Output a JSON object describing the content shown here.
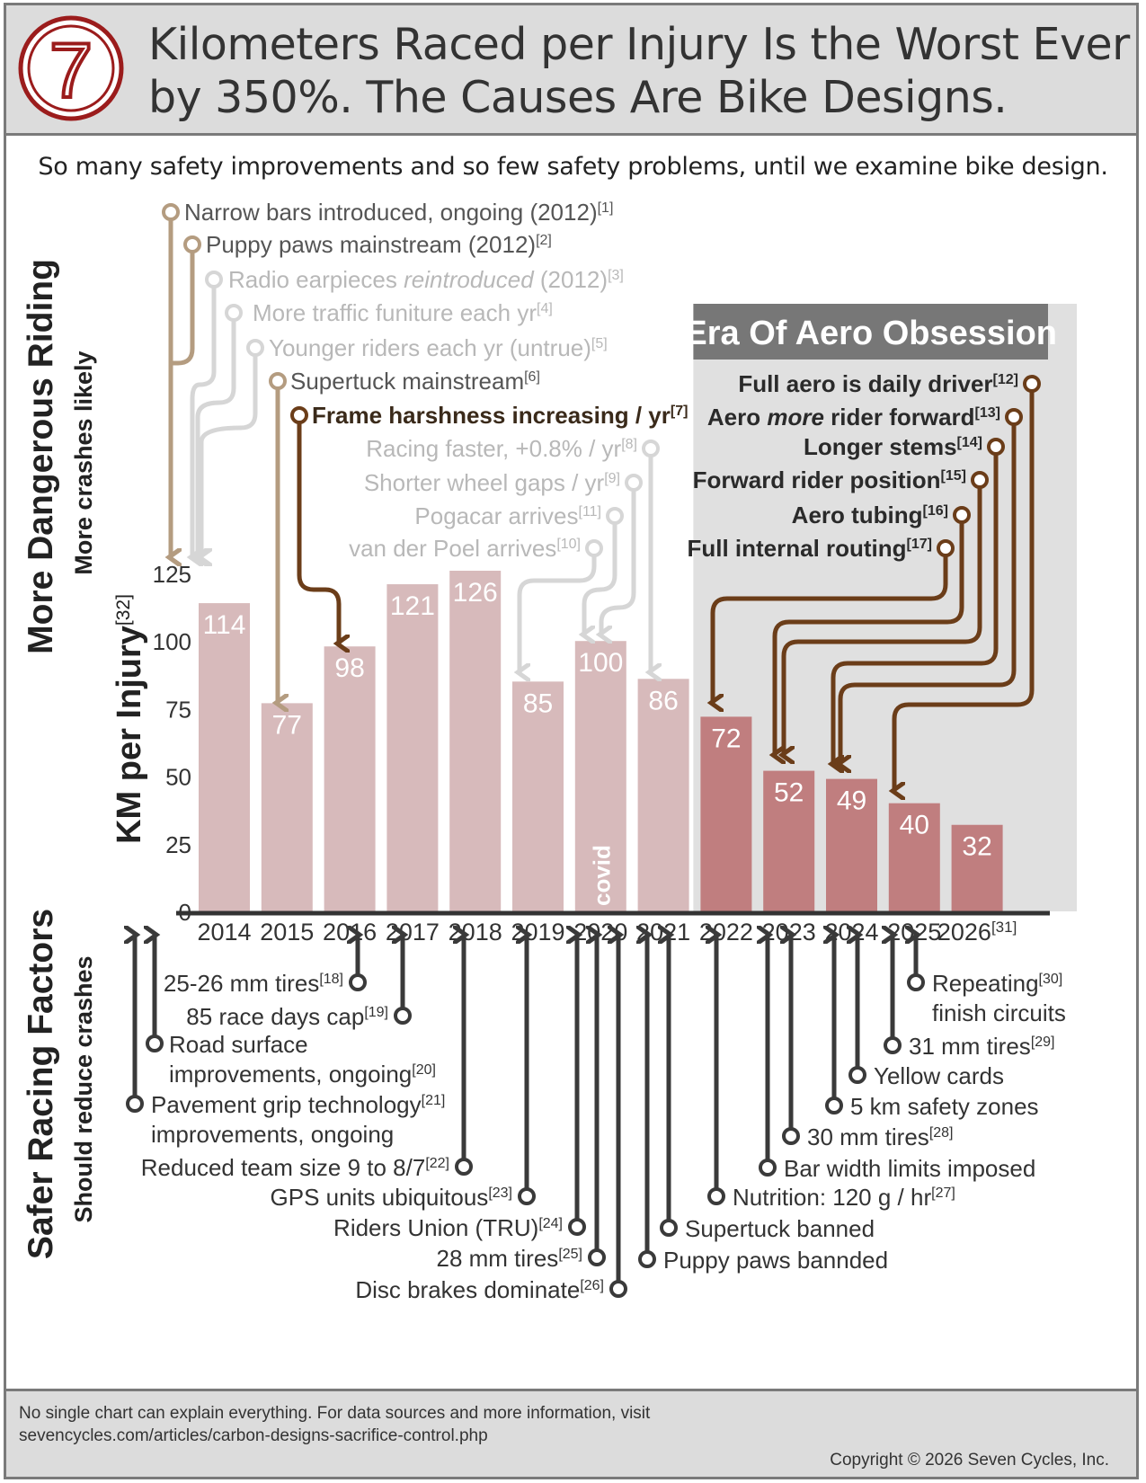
{
  "header": {
    "logo_glyph": "7",
    "title_line1": "Kilometers Raced per Injury Is the Worst Ever",
    "title_line2": "by 350%.  The Causes Are Bike Designs."
  },
  "subtitle": "So many safety improvements and so few safety problems, until we examine bike design.",
  "side_labels": {
    "top_main": "More Dangerous Riding",
    "top_sub": "More  crashes likely",
    "axis": "KM per Injury",
    "axis_ref": "[32]",
    "bottom_main": "Safer Racing Factors",
    "bottom_sub": "Should reduce crashes"
  },
  "era_label": "Era Of Aero Obsession",
  "covid_label": "covid",
  "colors": {
    "bar_normal": "#d7babb",
    "bar_aero": "#c07e7f",
    "era_box": "#e0e0e0",
    "era_title_bg": "#777777",
    "tan": "#b49c80",
    "lightgray": "#d6d6d6",
    "brown": "#6b3d19",
    "dark": "#3a3a3a"
  },
  "chart_data": {
    "type": "bar",
    "categories": [
      "2014",
      "2015",
      "2016",
      "2017",
      "2018",
      "2019",
      "2020",
      "2021",
      "2022",
      "2023",
      "2024",
      "2025",
      "2026"
    ],
    "category_ref": {
      "2026": "[31]"
    },
    "values": [
      114,
      77,
      98,
      121,
      126,
      85,
      100,
      86,
      72,
      52,
      49,
      40,
      32
    ],
    "aero_era_categories": [
      "2022",
      "2023",
      "2024",
      "2025",
      "2026"
    ],
    "ylim": [
      0,
      125
    ],
    "yticks": [
      0,
      25,
      50,
      75,
      100,
      125
    ],
    "ylabel": "KM per Injury[32]",
    "legend": "none"
  },
  "top_annotations": [
    {
      "text": "Narrow bars introduced, ongoing (2012)",
      "ref": "[1]",
      "style": "tan"
    },
    {
      "text": "Puppy paws mainstream (2012)",
      "ref": "[2]",
      "style": "tan"
    },
    {
      "text": "Radio earpieces ",
      "italic": "reintroduced",
      "text_after": " (2012)",
      "ref": "[3]",
      "style": "light"
    },
    {
      "text": "More traffic funiture each yr",
      "ref": "[4]",
      "style": "light"
    },
    {
      "text": "Younger riders each yr (untrue)",
      "ref": "[5]",
      "style": "light"
    },
    {
      "text": "Supertuck mainstream",
      "ref": "[6]",
      "style": "tan"
    },
    {
      "text": "Frame harshness increasing / yr",
      "ref": "[7]",
      "style": "brown-bold"
    },
    {
      "text": "Racing faster, +0.8% / yr",
      "ref": "[8]",
      "style": "light"
    },
    {
      "text": "Shorter wheel gaps / yr",
      "ref": "[9]",
      "style": "light"
    },
    {
      "text": "Pogacar arrives",
      "ref": "[11]",
      "style": "light"
    },
    {
      "text": "van der Poel arrives",
      "ref": "[10]",
      "style": "light"
    }
  ],
  "aero_annotations": [
    {
      "text": "Full aero is daily driver",
      "ref": "[12]"
    },
    {
      "text": "Aero ",
      "italic": "more",
      "text_after": " rider forward",
      "ref": "[13]"
    },
    {
      "text": "Longer stems",
      "ref": "[14]"
    },
    {
      "text": "Forward rider position",
      "ref": "[15]"
    },
    {
      "text": "Aero tubing",
      "ref": "[16]"
    },
    {
      "text": "Full internal routing",
      "ref": "[17]"
    }
  ],
  "bottom_annotations": [
    {
      "text": "25-26 mm tires",
      "ref": "[18]"
    },
    {
      "text": "85 race days cap",
      "ref": "[19]"
    },
    {
      "text": "Road surface",
      "text2": "improvements, ongoing",
      "ref": "[20]"
    },
    {
      "text": "Pavement grip technology",
      "ref": "[21]",
      "text2": "improvements, ongoing"
    },
    {
      "text": "Reduced team size 9 to 8/7",
      "ref": "[22]"
    },
    {
      "text": "GPS units ubiquitous",
      "ref": "[23]"
    },
    {
      "text": "Riders Union (TRU)",
      "ref": "[24]"
    },
    {
      "text": "28 mm tires",
      "ref": "[25]"
    },
    {
      "text": "Disc brakes dominate",
      "ref": "[26]"
    },
    {
      "text": "Nutrition:  120 g / hr",
      "ref": "[27]"
    },
    {
      "text": "Supertuck banned",
      "ref": ""
    },
    {
      "text": "Puppy paws bannded",
      "ref": ""
    },
    {
      "text": "Bar width limits imposed",
      "ref": ""
    },
    {
      "text": "30 mm tires",
      "ref": "[28]"
    },
    {
      "text": "5 km safety zones",
      "ref": ""
    },
    {
      "text": "Yellow cards",
      "ref": ""
    },
    {
      "text": "31 mm tires",
      "ref": "[29]"
    },
    {
      "text": "Repeating",
      "ref": "[30]",
      "text2": "finish circuits"
    }
  ],
  "footer": {
    "note_line1": "No single chart can explain everything.  For data sources and more information, visit",
    "note_line2": "sevencycles.com/articles/carbon-designs-sacrifice-control.php",
    "copyright": "Copyright © 2026 Seven Cycles, Inc."
  }
}
